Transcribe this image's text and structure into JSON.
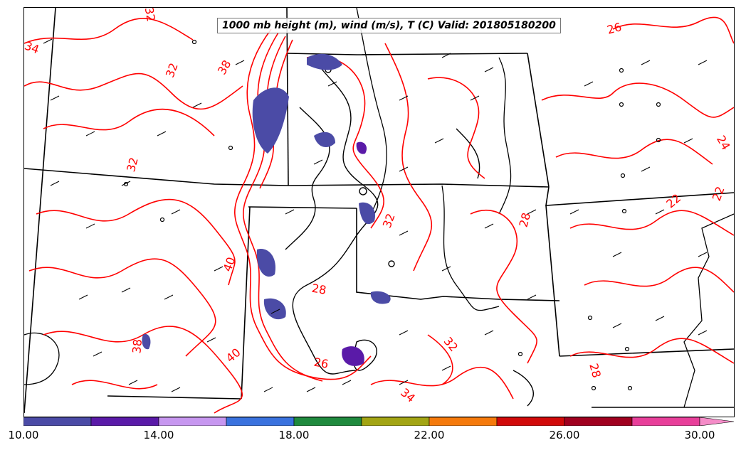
{
  "title": "1000 mb height (m), wind (m/s), T (C) Valid: 201805180200",
  "colorbar": {
    "colors": [
      "#4b4ba6",
      "#5a1aa8",
      "#c797f0",
      "#3a72de",
      "#1f8a3e",
      "#a3a514",
      "#f57a0c",
      "#d10a0a",
      "#a0001f",
      "#e83f9a",
      "#f58cc8"
    ],
    "ticks": [
      "10.00",
      "14.00",
      "18.00",
      "22.00",
      "26.00",
      "30.00"
    ]
  },
  "contour_labels": [
    {
      "text": "32",
      "color": "#ff0000"
    },
    {
      "text": "34",
      "color": "#ff0000"
    },
    {
      "text": "32",
      "color": "#ff0000"
    },
    {
      "text": "38",
      "color": "#ff0000"
    },
    {
      "text": "32",
      "color": "#ff0000"
    },
    {
      "text": "40",
      "color": "#ff0000"
    },
    {
      "text": "38",
      "color": "#ff0000"
    },
    {
      "text": "40",
      "color": "#ff0000"
    },
    {
      "text": "28",
      "color": "#ff0000"
    },
    {
      "text": "26",
      "color": "#ff0000"
    },
    {
      "text": "32",
      "color": "#ff0000"
    },
    {
      "text": "34",
      "color": "#ff0000"
    },
    {
      "text": "32",
      "color": "#ff0000"
    },
    {
      "text": "28",
      "color": "#ff0000"
    },
    {
      "text": "26",
      "color": "#ff0000"
    },
    {
      "text": "24",
      "color": "#ff0000"
    },
    {
      "text": "22",
      "color": "#ff0000"
    },
    {
      "text": "22",
      "color": "#ff0000"
    },
    {
      "text": "28",
      "color": "#ff0000"
    }
  ]
}
